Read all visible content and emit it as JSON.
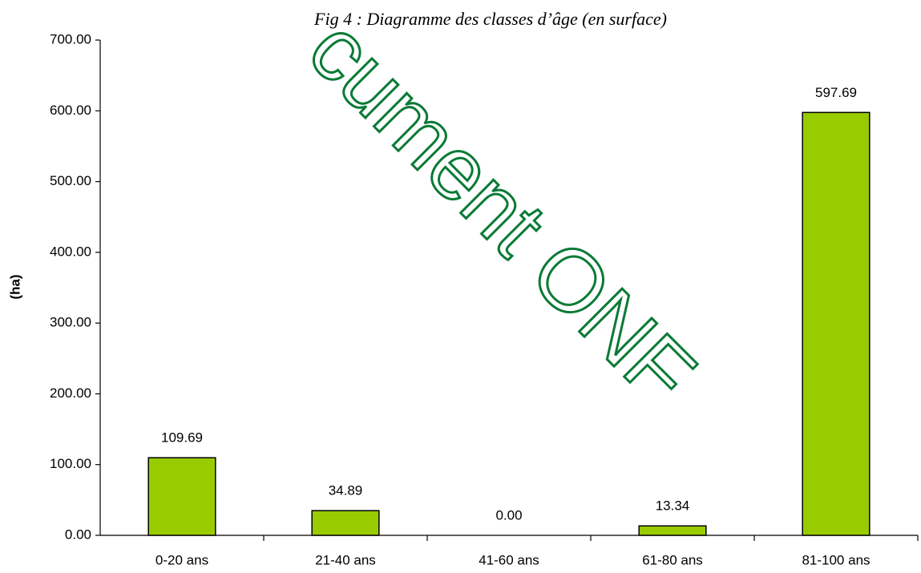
{
  "chart_data": {
    "type": "bar",
    "title": "Fig 4 : Diagramme des classes d’âge (en surface)",
    "watermark": "cument ONF",
    "y_label": "(ha)",
    "categories": [
      "0-20 ans",
      "21-40 ans",
      "41-60 ans",
      "61-80 ans",
      "81-100 ans"
    ],
    "values": [
      109.69,
      34.89,
      0,
      13.34,
      597.69
    ],
    "value_labels": [
      "109.69",
      "34.89",
      "0.00",
      "13.34",
      "597.69"
    ],
    "color": "#99cc00",
    "ylim": [
      0,
      700
    ],
    "yticks": [
      {
        "value": 0,
        "label": "0.00"
      },
      {
        "value": 100,
        "label": "100.00"
      },
      {
        "value": 200,
        "label": "200.00"
      },
      {
        "value": 300,
        "label": "300.00"
      },
      {
        "value": 400,
        "label": "400.00"
      },
      {
        "value": 500,
        "label": "500.00"
      },
      {
        "value": 600,
        "label": "600.00"
      },
      {
        "value": 700,
        "label": "700.00"
      }
    ],
    "grid": false
  }
}
